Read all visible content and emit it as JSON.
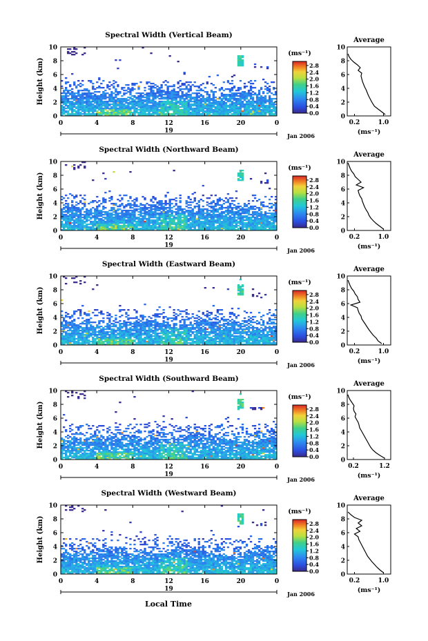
{
  "figure": {
    "xlabel": "Local Time",
    "date_label": "Jan 2006",
    "day_label": "19"
  },
  "chart_data": [
    {
      "type": "heatmap",
      "title": "Spectral Width (Vertical Beam)",
      "ylabel": "Height (km)",
      "xlim": [
        0,
        24
      ],
      "ylim": [
        0,
        10
      ],
      "x_ticks": [
        "0",
        "4",
        "8",
        "12",
        "16",
        "20",
        "0"
      ],
      "y_ticks": [
        "0",
        "2",
        "4",
        "6",
        "8",
        "10"
      ],
      "colorbar": {
        "unit": "(ms⁻¹)",
        "ticks": [
          "0.0",
          "0.4",
          "0.8",
          "1.2",
          "1.6",
          "2.0",
          "2.4",
          "2.8"
        ]
      },
      "average": {
        "title": "Average",
        "xlabel": "(ms⁻¹)",
        "x_ticks": [
          "0.2",
          "1.0"
        ],
        "xlim": [
          0.0,
          1.2
        ],
        "heights": [
          0.2,
          0.6,
          1.0,
          1.4,
          1.8,
          2.2,
          2.6,
          3.0,
          3.4,
          3.8,
          4.2,
          4.6,
          5.0,
          5.4,
          5.8,
          6.2,
          6.6,
          7.0,
          7.4,
          7.8,
          8.2,
          8.6,
          9.0
        ],
        "values": [
          1.05,
          0.95,
          0.85,
          0.75,
          0.7,
          0.66,
          0.62,
          0.58,
          0.55,
          0.52,
          0.48,
          0.45,
          0.42,
          0.4,
          0.38,
          0.4,
          0.3,
          0.36,
          0.28,
          0.18,
          0.1,
          0.05,
          0.02
        ]
      }
    },
    {
      "type": "heatmap",
      "title": "Spectral Width (Northward Beam)",
      "ylabel": "Height (km)",
      "xlim": [
        0,
        24
      ],
      "ylim": [
        0,
        10
      ],
      "x_ticks": [
        "0",
        "4",
        "8",
        "12",
        "16",
        "20",
        "0"
      ],
      "y_ticks": [
        "0",
        "2",
        "4",
        "6",
        "8",
        "10"
      ],
      "colorbar": {
        "unit": "(ms⁻¹)",
        "ticks": [
          "0.0",
          "0.4",
          "0.8",
          "1.2",
          "1.6",
          "2.0",
          "2.4",
          "2.8"
        ]
      },
      "average": {
        "title": "Average",
        "xlabel": "(ms⁻¹)",
        "x_ticks": [
          "0.2",
          "1.0"
        ],
        "xlim": [
          0.0,
          1.2
        ],
        "heights": [
          0.2,
          0.6,
          1.0,
          1.4,
          1.8,
          2.2,
          2.6,
          3.0,
          3.4,
          3.8,
          4.2,
          4.6,
          5.0,
          5.4,
          5.8,
          6.2,
          6.6,
          7.0,
          7.4,
          7.8,
          8.2,
          8.6,
          9.0,
          9.4,
          9.8
        ],
        "values": [
          1.0,
          0.9,
          0.8,
          0.72,
          0.65,
          0.6,
          0.57,
          0.52,
          0.48,
          0.45,
          0.42,
          0.4,
          0.35,
          0.32,
          0.3,
          0.45,
          0.25,
          0.38,
          0.3,
          0.22,
          0.18,
          0.12,
          0.08,
          0.05,
          0.02
        ]
      }
    },
    {
      "type": "heatmap",
      "title": "Spectral Width (Eastward Beam)",
      "ylabel": "Height (km)",
      "xlim": [
        0,
        24
      ],
      "ylim": [
        0,
        10
      ],
      "x_ticks": [
        "0",
        "4",
        "8",
        "12",
        "16",
        "20",
        "0"
      ],
      "y_ticks": [
        "0",
        "2",
        "4",
        "6",
        "8",
        "10"
      ],
      "colorbar": {
        "unit": "(ms⁻¹)",
        "ticks": [
          "0.0",
          "0.4",
          "0.8",
          "1.2",
          "1.6",
          "2.0",
          "2.4",
          "2.8"
        ]
      },
      "average": {
        "title": "Average",
        "xlabel": "(ms⁻¹)",
        "x_ticks": [
          "0.2",
          "1.0"
        ],
        "xlim": [
          0.0,
          1.2
        ],
        "heights": [
          0.2,
          0.6,
          1.0,
          1.4,
          1.8,
          2.2,
          2.6,
          3.0,
          3.4,
          3.8,
          4.2,
          4.6,
          5.0,
          5.4,
          5.8,
          6.2,
          6.6,
          7.0,
          7.4,
          7.8,
          8.2,
          8.6,
          9.0,
          9.4
        ],
        "values": [
          0.95,
          0.85,
          0.8,
          0.72,
          0.66,
          0.6,
          0.55,
          0.5,
          0.45,
          0.4,
          0.38,
          0.33,
          0.3,
          0.28,
          0.1,
          0.35,
          0.3,
          0.28,
          0.22,
          0.18,
          0.12,
          0.08,
          0.05,
          0.02
        ]
      }
    },
    {
      "type": "heatmap",
      "title": "Spectral Width (Southward Beam)",
      "ylabel": "Height (km)",
      "xlim": [
        0,
        24
      ],
      "ylim": [
        0,
        10
      ],
      "x_ticks": [
        "0",
        "4",
        "8",
        "12",
        "16",
        "20",
        "0"
      ],
      "y_ticks": [
        "0",
        "2",
        "4",
        "6",
        "8",
        "10"
      ],
      "colorbar": {
        "unit": "(ms⁻¹)",
        "ticks": [
          "0.0",
          "0.4",
          "0.8",
          "1.2",
          "1.6",
          "2.0",
          "2.4",
          "2.8"
        ]
      },
      "average": {
        "title": "Average",
        "xlabel": "(ms⁻¹)",
        "x_ticks": [
          "0.2",
          "1.2"
        ],
        "xlim": [
          0.0,
          1.4
        ],
        "heights": [
          0.2,
          0.6,
          1.0,
          1.4,
          1.8,
          2.2,
          2.6,
          3.0,
          3.4,
          3.8,
          4.2,
          4.6,
          5.0,
          5.4,
          5.8,
          6.2,
          6.6,
          7.0,
          7.4,
          7.8,
          8.2,
          8.6,
          9.0,
          9.4
        ],
        "values": [
          1.2,
          1.05,
          0.92,
          0.82,
          0.75,
          0.7,
          0.65,
          0.6,
          0.55,
          0.5,
          0.45,
          0.4,
          0.38,
          0.35,
          0.3,
          0.25,
          0.28,
          0.22,
          0.2,
          0.22,
          0.16,
          0.1,
          0.05,
          0.02
        ]
      }
    },
    {
      "type": "heatmap",
      "title": "Spectral Width (Westward Beam)",
      "ylabel": "Height (km)",
      "xlim": [
        0,
        24
      ],
      "ylim": [
        0,
        10
      ],
      "x_ticks": [
        "0",
        "4",
        "8",
        "12",
        "16",
        "20",
        "0"
      ],
      "y_ticks": [
        "0",
        "2",
        "4",
        "6",
        "8",
        "10"
      ],
      "colorbar": {
        "unit": "(ms⁻¹)",
        "ticks": [
          "0.0",
          "0.4",
          "0.8",
          "1.2",
          "1.6",
          "2.0",
          "2.4",
          "2.8"
        ]
      },
      "average": {
        "title": "Average",
        "xlabel": "(ms⁻¹)",
        "x_ticks": [
          "0.2",
          "1.0"
        ],
        "xlim": [
          0.0,
          1.2
        ],
        "heights": [
          0.2,
          0.6,
          1.0,
          1.4,
          1.8,
          2.2,
          2.6,
          3.0,
          3.4,
          3.8,
          4.2,
          4.6,
          5.0,
          5.4,
          5.8,
          6.2,
          6.6,
          7.0,
          7.4,
          7.8,
          8.2,
          8.6,
          9.0
        ],
        "values": [
          1.0,
          0.9,
          0.82,
          0.75,
          0.68,
          0.62,
          0.56,
          0.52,
          0.48,
          0.44,
          0.4,
          0.36,
          0.32,
          0.3,
          0.2,
          0.35,
          0.25,
          0.4,
          0.3,
          0.4,
          0.2,
          0.1,
          0.02
        ]
      }
    }
  ]
}
